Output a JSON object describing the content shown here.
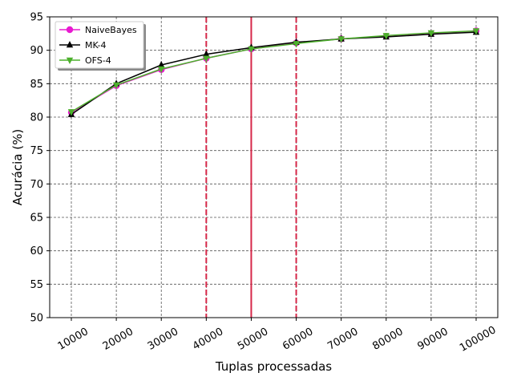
{
  "chart_data": {
    "type": "line",
    "xlabel": "Tuplas processadas",
    "ylabel": "Acurácia (%)",
    "ylim": [
      50,
      95
    ],
    "yticks": [
      50,
      55,
      60,
      65,
      70,
      75,
      80,
      85,
      90,
      95
    ],
    "categories": [
      "10000",
      "20000",
      "30000",
      "40000",
      "50000",
      "60000",
      "70000",
      "80000",
      "90000",
      "100000"
    ],
    "grid": true,
    "legend_position": "top-left",
    "series": [
      {
        "name": "NaiveBayes",
        "color": "#e81ad0",
        "marker": "circle",
        "values": [
          80.7,
          84.7,
          87.1,
          88.8,
          90.2,
          91.1,
          91.7,
          92.1,
          92.5,
          92.9
        ]
      },
      {
        "name": "MK-4",
        "color": "#000000",
        "marker": "triangle-up",
        "values": [
          80.4,
          85.0,
          87.8,
          89.4,
          90.4,
          91.2,
          91.7,
          92.0,
          92.4,
          92.7
        ]
      },
      {
        "name": "OFS-4",
        "color": "#4cb02c",
        "marker": "triangle-down",
        "values": [
          80.8,
          84.8,
          87.2,
          88.8,
          90.2,
          91.0,
          91.7,
          92.2,
          92.6,
          92.9
        ]
      }
    ],
    "vertical_lines": [
      {
        "x": "40000",
        "style": "dashed",
        "color": "#d62748"
      },
      {
        "x": "50000",
        "style": "solid",
        "color": "#d62748"
      },
      {
        "x": "60000",
        "style": "dashed",
        "color": "#d62748"
      }
    ]
  }
}
